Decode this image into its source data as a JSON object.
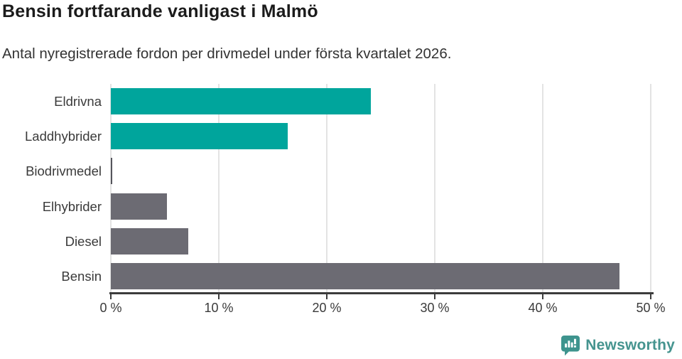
{
  "header": {
    "title": "Bensin fortfarande vanligast i Malmö",
    "subtitle": "Antal nyregistrerade fordon per drivmedel under första kvartalet 2026."
  },
  "chart_data": {
    "type": "bar",
    "orientation": "horizontal",
    "title": "Bensin fortfarande vanligast i Malmö",
    "subtitle": "Antal nyregistrerade fordon per drivmedel under första kvartalet 2026.",
    "categories": [
      "Eldrivna",
      "Laddhybrider",
      "Biodrivmedel",
      "Elhybrider",
      "Diesel",
      "Bensin"
    ],
    "values": [
      24.1,
      16.4,
      0.1,
      5.2,
      7.2,
      47.1
    ],
    "unit": "%",
    "xlabel": "",
    "ylabel": "",
    "xlim": [
      0,
      50
    ],
    "x_ticks": [
      0,
      10,
      20,
      30,
      40,
      50
    ],
    "x_tick_labels": [
      "0 %",
      "10 %",
      "20 %",
      "30 %",
      "40 %",
      "50 %"
    ],
    "bar_colors": [
      "#00a59c",
      "#00a59c",
      "#55555c",
      "#6c6b73",
      "#6c6b73",
      "#6c6b73"
    ],
    "grid": true,
    "legend": false
  },
  "footer": {
    "brand": "Newsworthy"
  },
  "colors": {
    "accent_teal": "#00a59c",
    "bar_gray": "#6c6b73",
    "axis": "#3c3c3c",
    "gridline": "#e3e3e3",
    "title_text": "#1b1b1b",
    "body_text": "#333333",
    "logo_teal": "#45948f"
  }
}
